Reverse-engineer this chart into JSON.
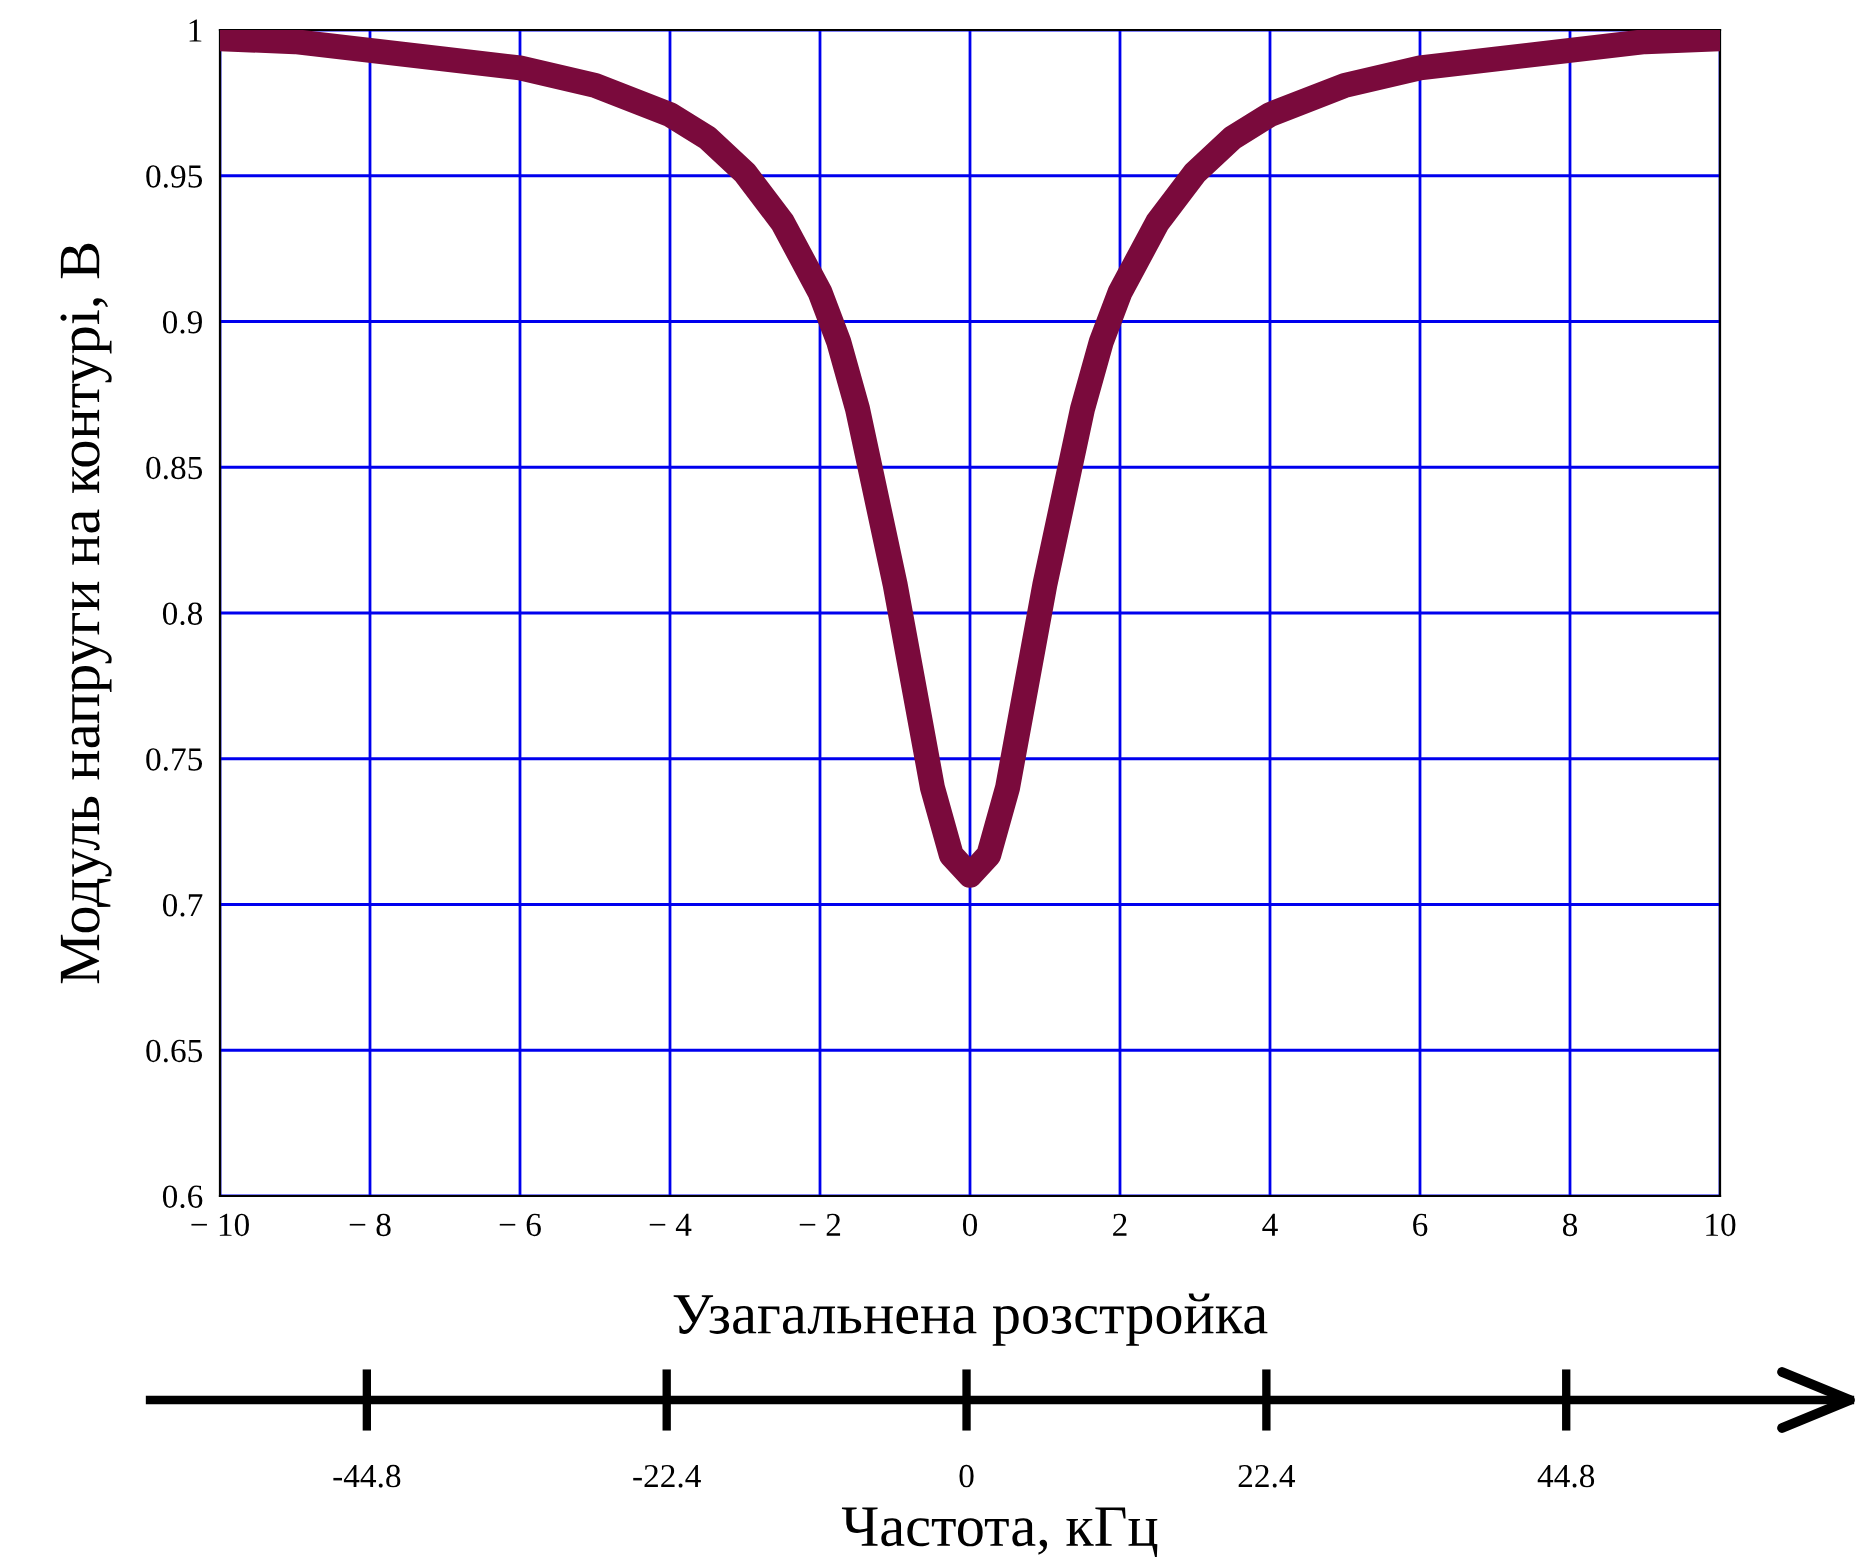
{
  "chart_data": {
    "type": "line",
    "xlabel": "Узагальнена розстройка",
    "ylabel": "Модуль напруги на контурі, В",
    "x2label": "Частота, кГц",
    "x": [
      -10,
      -9,
      -8,
      -7,
      -6,
      -5,
      -4,
      -3.5,
      -3,
      -2.5,
      -2,
      -1.75,
      -1.5,
      -1.25,
      -1,
      -0.75,
      -0.5,
      -0.25,
      0,
      0.25,
      0.5,
      0.75,
      1,
      1.25,
      1.5,
      1.75,
      2,
      2.5,
      3,
      3.5,
      4,
      5,
      6,
      7,
      8,
      9,
      10
    ],
    "series": [
      {
        "color": "#7a0a3c",
        "values": [
          0.997,
          0.996,
          0.993,
          0.99,
          0.987,
          0.981,
          0.971,
          0.963,
          0.951,
          0.934,
          0.91,
          0.893,
          0.87,
          0.84,
          0.81,
          0.775,
          0.74,
          0.717,
          0.71,
          0.717,
          0.74,
          0.775,
          0.81,
          0.84,
          0.87,
          0.893,
          0.91,
          0.934,
          0.951,
          0.963,
          0.971,
          0.981,
          0.987,
          0.99,
          0.993,
          0.996,
          0.997
        ]
      }
    ],
    "xlim": [
      -10,
      10
    ],
    "ylim": [
      0.6,
      1
    ],
    "xticks": [
      {
        "value": -10,
        "label": "− 10"
      },
      {
        "value": -8,
        "label": "− 8"
      },
      {
        "value": -6,
        "label": "− 6"
      },
      {
        "value": -4,
        "label": "− 4"
      },
      {
        "value": -2,
        "label": "− 2"
      },
      0,
      2,
      4,
      6,
      8,
      10
    ],
    "yticks": [
      0.6,
      0.65,
      0.7,
      0.75,
      0.8,
      0.85,
      0.9,
      0.95,
      1
    ],
    "x2lim": [
      -61,
      66
    ],
    "x2ticks": [
      -44.8,
      -22.4,
      0,
      22.4,
      44.8
    ],
    "grid": true,
    "line_style": "solid"
  }
}
